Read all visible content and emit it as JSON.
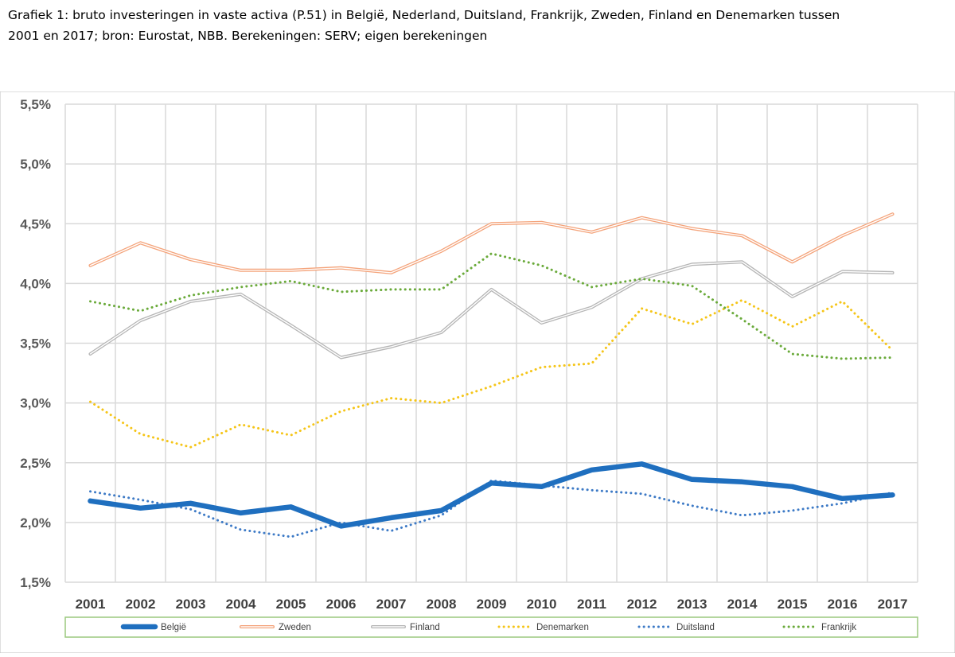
{
  "caption": {
    "line1": "Grafiek 1: bruto investeringen in vaste activa (P.51) in België, Nederland, Duitsland, Frankrijk, Zweden, Finland en Denemarken  tussen",
    "line2": "2001 en 2017; bron: Eurostat, NBB. Berekeningen: SERV; eigen berekeningen"
  },
  "chart_data": {
    "type": "line",
    "categories": [
      "2001",
      "2002",
      "2003",
      "2004",
      "2005",
      "2006",
      "2007",
      "2008",
      "2009",
      "2010",
      "2011",
      "2012",
      "2013",
      "2014",
      "2015",
      "2016",
      "2017"
    ],
    "y_ticks": [
      "1,5%",
      "2,0%",
      "2,5%",
      "3,0%",
      "3,5%",
      "4,0%",
      "4,5%",
      "5,0%",
      "5,5%"
    ],
    "ylim": [
      1.5,
      5.5
    ],
    "grid": "vertical and horizontal",
    "legend_position": "bottom",
    "series": [
      {
        "name": "België",
        "style": "thick solid",
        "color": "#1f6fbf",
        "values": [
          2.18,
          2.12,
          2.16,
          2.08,
          2.13,
          1.97,
          2.04,
          2.1,
          2.33,
          2.3,
          2.44,
          2.49,
          2.36,
          2.34,
          2.3,
          2.2,
          2.23
        ]
      },
      {
        "name": "Zweden",
        "style": "outlined",
        "color": "#f4a37a",
        "values": [
          4.15,
          4.34,
          4.2,
          4.11,
          4.11,
          4.13,
          4.09,
          4.27,
          4.5,
          4.51,
          4.43,
          4.55,
          4.46,
          4.4,
          4.18,
          4.4,
          4.58
        ]
      },
      {
        "name": "Finland",
        "style": "outlined",
        "color": "#b5b5b5",
        "values": [
          3.41,
          3.69,
          3.85,
          3.91,
          3.65,
          3.38,
          3.47,
          3.59,
          3.95,
          3.67,
          3.8,
          4.04,
          4.16,
          4.18,
          3.89,
          4.1,
          4.09
        ]
      },
      {
        "name": "Denemarken",
        "style": "dotted",
        "color": "#f5c518",
        "values": [
          3.01,
          2.74,
          2.63,
          2.82,
          2.73,
          2.93,
          3.04,
          3.0,
          3.14,
          3.3,
          3.33,
          3.79,
          3.66,
          3.86,
          3.64,
          3.85,
          3.44
        ]
      },
      {
        "name": "Duitsland",
        "style": "dotted",
        "color": "#3d7ac6",
        "values": [
          2.26,
          2.19,
          2.11,
          1.94,
          1.88,
          2.0,
          1.93,
          2.06,
          2.35,
          2.31,
          2.27,
          2.24,
          2.14,
          2.06,
          2.1,
          2.16,
          2.25
        ]
      },
      {
        "name": "Frankrijk",
        "style": "dotted",
        "color": "#6aaa3a",
        "values": [
          3.85,
          3.77,
          3.9,
          3.97,
          4.02,
          3.93,
          3.95,
          3.95,
          4.25,
          4.15,
          3.97,
          4.04,
          3.98,
          3.7,
          3.41,
          3.37,
          3.38
        ]
      }
    ]
  }
}
